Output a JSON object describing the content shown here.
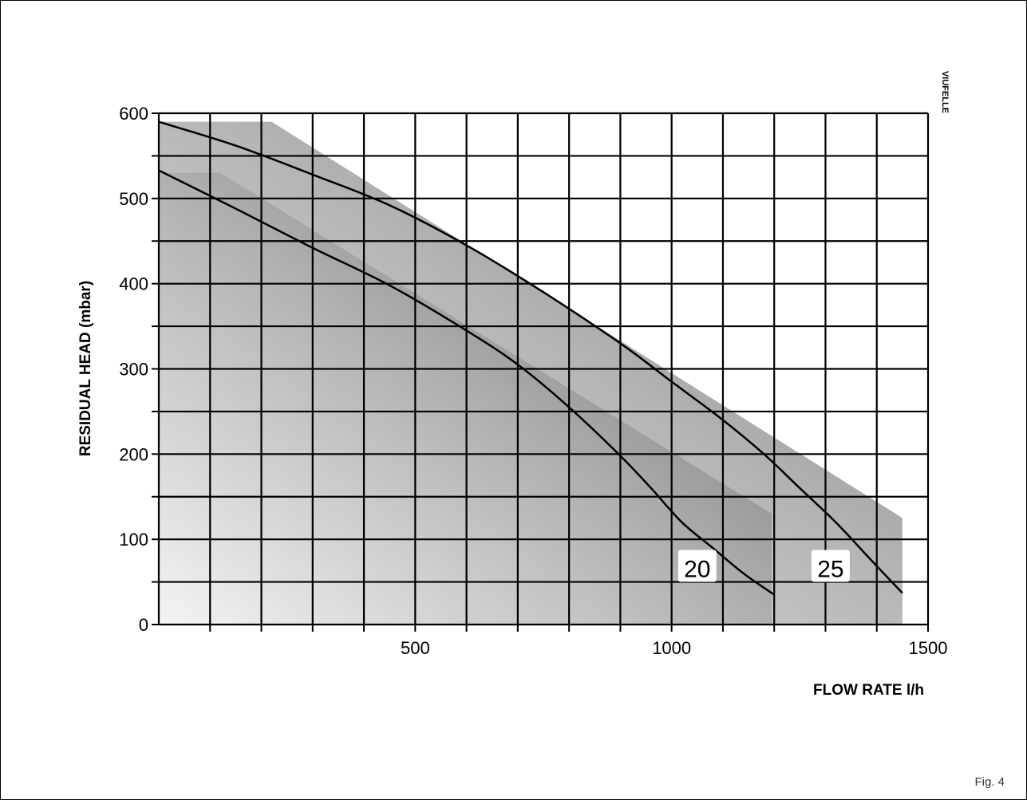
{
  "figure_label": "Fig. 4",
  "chart_data": {
    "type": "line",
    "title": "",
    "xlabel": "FLOW RATE l/h",
    "ylabel": "RESIDUAL HEAD (mbar)",
    "xlim": [
      0,
      1500
    ],
    "ylim": [
      0,
      600
    ],
    "x_ticks": [
      500,
      1000,
      1500
    ],
    "x_tick_labels": [
      "500",
      "1000",
      "1500"
    ],
    "y_ticks": [
      0,
      100,
      200,
      300,
      400,
      500,
      600
    ],
    "y_tick_labels": [
      "0",
      "100",
      "200",
      "300",
      "400",
      "500",
      "600"
    ],
    "grid": true,
    "grid_x_step": 100,
    "grid_y_step": 50,
    "side_mark": "VIUFELLE",
    "series": [
      {
        "name": "25",
        "x": [
          0,
          150,
          300,
          450,
          600,
          750,
          900,
          1000,
          1100,
          1180,
          1250,
          1320,
          1390,
          1450
        ],
        "y": [
          590,
          562,
          528,
          492,
          445,
          390,
          330,
          285,
          240,
          200,
          160,
          120,
          75,
          37
        ]
      },
      {
        "name": "20",
        "x": [
          0,
          150,
          300,
          450,
          600,
          700,
          800,
          900,
          960,
          1020,
          1080,
          1140,
          1200
        ],
        "y": [
          533,
          488,
          442,
          398,
          345,
          305,
          255,
          198,
          160,
          120,
          90,
          60,
          35
        ]
      }
    ],
    "shaded_regions": [
      {
        "series": "25",
        "x_start": 0,
        "x_end": 1450,
        "top_flat_end": 220,
        "top_y": 590,
        "end_y": 125
      },
      {
        "series": "20",
        "x_start": 0,
        "x_end": 1195,
        "top_flat_end": 120,
        "top_y": 530,
        "end_y": 130
      }
    ],
    "series_labels": [
      {
        "text": "20",
        "x": 1050,
        "y": 65
      },
      {
        "text": "25",
        "x": 1310,
        "y": 65
      }
    ]
  }
}
